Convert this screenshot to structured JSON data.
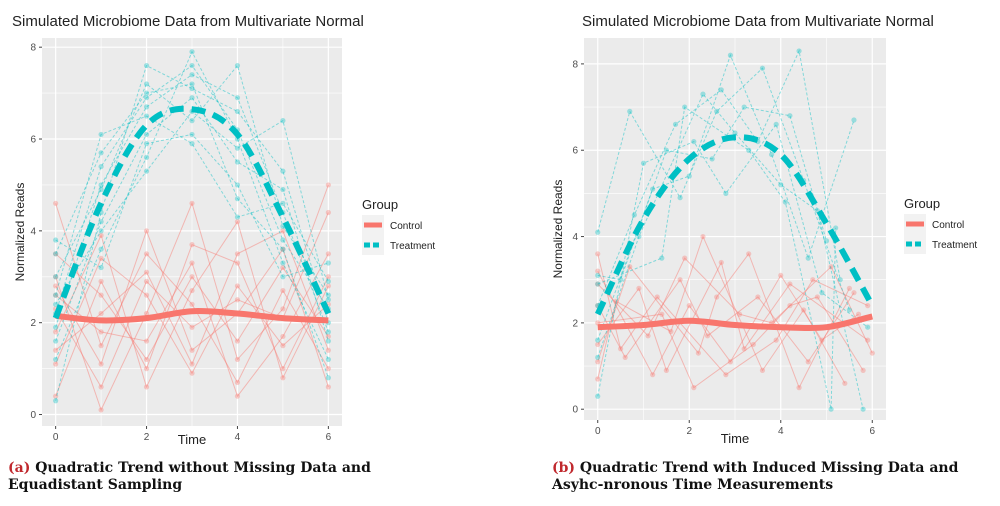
{
  "colors": {
    "control": "#f8766d",
    "treatment": "#00bfc4",
    "panel_bg": "#ebebeb",
    "grid": "#ffffff",
    "caption_tag": "#c0282d"
  },
  "captions": {
    "a_tag": "(a)",
    "a_text": "Quadratic Trend without Missing Data and Equadistant Sampling",
    "b_tag": "(b)",
    "b_text": "Quadratic Trend with Induced Missing Data and Asyhc-nronous Time Measurements"
  },
  "chart_data": [
    {
      "type": "line",
      "title": "Simulated Microbiome Data from Multivariate Normal",
      "xlabel": "Time",
      "ylabel": "Normalized Reads",
      "xlim": [
        -0.3,
        6.3
      ],
      "ylim": [
        -0.25,
        8.2
      ],
      "xticks": [
        0,
        2,
        4,
        6
      ],
      "yticks": [
        0,
        2,
        4,
        6,
        8
      ],
      "grid": true,
      "legend": {
        "title": "Group",
        "entries": [
          "Control",
          "Treatment"
        ],
        "placement": "right"
      },
      "series": [
        {
          "name": "Control",
          "style": "solid",
          "x": [
            0,
            1,
            2,
            3,
            4,
            5,
            6
          ],
          "values": [
            2.15,
            2.05,
            2.1,
            2.25,
            2.2,
            2.1,
            2.05
          ]
        },
        {
          "name": "Treatment",
          "style": "dashed",
          "x": [
            0,
            1,
            2,
            3,
            4,
            5,
            6
          ],
          "values": [
            2.1,
            4.6,
            6.3,
            6.65,
            6.1,
            4.3,
            2.2
          ]
        }
      ],
      "individual_series_control": [
        [
          2.3,
          0.6,
          2.9,
          1.9,
          2.5,
          2.1,
          4.4
        ],
        [
          3.5,
          2.6,
          1.2,
          3.0,
          1.6,
          3.2,
          1.7
        ],
        [
          1.1,
          3.4,
          2.6,
          0.9,
          2.8,
          1.5,
          2.4
        ],
        [
          4.6,
          1.5,
          3.5,
          2.4,
          0.7,
          2.7,
          1.0
        ],
        [
          0.4,
          2.9,
          1.0,
          3.7,
          3.3,
          1.0,
          3.0
        ],
        [
          2.8,
          1.1,
          4.0,
          1.4,
          2.2,
          3.6,
          0.6
        ],
        [
          1.8,
          3.9,
          0.6,
          2.7,
          4.2,
          0.8,
          2.8
        ],
        [
          3.0,
          0.1,
          2.2,
          4.6,
          1.2,
          2.3,
          5.0
        ],
        [
          1.4,
          2.2,
          3.1,
          1.1,
          3.5,
          4.0,
          1.4
        ],
        [
          2.6,
          1.8,
          1.6,
          3.3,
          0.4,
          1.7,
          3.5
        ]
      ],
      "individual_series_treatment": [
        [
          2.2,
          5.4,
          6.9,
          7.6,
          6.2,
          3.8,
          2.3
        ],
        [
          1.6,
          4.2,
          6.1,
          6.9,
          5.5,
          4.9,
          1.6
        ],
        [
          3.0,
          4.9,
          7.2,
          6.4,
          7.6,
          4.1,
          2.6
        ],
        [
          1.2,
          3.6,
          5.6,
          7.9,
          6.0,
          3.3,
          1.2
        ],
        [
          2.6,
          6.1,
          6.5,
          5.9,
          4.3,
          4.6,
          2.9
        ],
        [
          0.3,
          4.4,
          7.6,
          7.1,
          6.6,
          5.3,
          2.0
        ],
        [
          3.8,
          3.2,
          5.9,
          6.1,
          5.0,
          3.0,
          3.3
        ],
        [
          1.9,
          5.0,
          6.7,
          7.4,
          6.9,
          4.4,
          1.8
        ],
        [
          2.4,
          4.0,
          5.3,
          6.6,
          5.8,
          6.4,
          2.5
        ],
        [
          3.5,
          5.7,
          7.0,
          7.2,
          4.7,
          3.6,
          0.8
        ]
      ]
    },
    {
      "type": "line",
      "title": "Simulated Microbiome Data from Multivariate Normal",
      "xlabel": "Time",
      "ylabel": "Normalized Reads",
      "xlim": [
        -0.3,
        6.3
      ],
      "ylim": [
        -0.25,
        8.6
      ],
      "xticks": [
        0,
        2,
        4,
        6
      ],
      "yticks": [
        0,
        2,
        4,
        6,
        8
      ],
      "grid": true,
      "legend": {
        "title": "Group",
        "entries": [
          "Control",
          "Treatment"
        ],
        "placement": "right"
      },
      "series": [
        {
          "name": "Control",
          "style": "solid",
          "x": [
            0,
            1,
            2,
            3,
            4,
            5,
            6
          ],
          "values": [
            1.9,
            1.95,
            2.05,
            1.95,
            1.9,
            1.9,
            2.15
          ]
        },
        {
          "name": "Treatment",
          "style": "dashed",
          "x": [
            0,
            1,
            2,
            3,
            4,
            5,
            6
          ],
          "values": [
            2.2,
            4.4,
            5.8,
            6.3,
            5.9,
            4.3,
            2.4
          ]
        }
      ],
      "individual_series_control": [
        {
          "x": [
            0,
            0.6,
            1.8,
            2.4,
            3.5,
            4.6,
            5.6
          ],
          "y": [
            2.4,
            1.2,
            3.0,
            1.7,
            2.6,
            1.1,
            2.7
          ]
        },
        {
          "x": [
            0,
            0.9,
            1.5,
            2.7,
            3.2,
            4.2,
            5.9
          ],
          "y": [
            1.5,
            2.8,
            0.9,
            3.4,
            1.4,
            2.9,
            1.6
          ]
        },
        {
          "x": [
            0,
            1.2,
            2.0,
            2.9,
            4.0,
            4.9,
            5.7
          ],
          "y": [
            3.2,
            0.8,
            2.4,
            1.1,
            3.1,
            1.6,
            2.2
          ]
        },
        {
          "x": [
            0,
            0.4,
            1.6,
            2.3,
            3.6,
            4.5,
            5.4
          ],
          "y": [
            0.7,
            2.5,
            1.8,
            4.0,
            0.9,
            2.3,
            0.6
          ]
        },
        {
          "x": [
            0,
            1.1,
            1.9,
            3.1,
            3.8,
            5.1,
            6.0
          ],
          "y": [
            2.9,
            1.7,
            3.5,
            2.2,
            2.0,
            3.3,
            1.3
          ]
        },
        {
          "x": [
            0,
            0.7,
            2.2,
            2.6,
            3.3,
            4.4,
            5.5
          ],
          "y": [
            1.1,
            3.3,
            1.3,
            2.6,
            3.6,
            0.5,
            2.8
          ]
        },
        {
          "x": [
            0,
            1.4,
            2.1,
            3.4,
            4.2,
            4.8,
            5.8
          ],
          "y": [
            2.0,
            2.2,
            0.5,
            1.5,
            2.4,
            2.6,
            0.9
          ]
        },
        {
          "x": [
            0,
            0.5,
            1.3,
            2.8,
            3.9,
            4.7,
            5.9
          ],
          "y": [
            3.6,
            1.4,
            2.6,
            0.8,
            1.6,
            3.0,
            2.4
          ]
        }
      ],
      "individual_series_treatment": [
        {
          "x": [
            0,
            0.8,
            1.7,
            2.7,
            3.5,
            4.4,
            5.3
          ],
          "y": [
            2.4,
            4.5,
            6.6,
            7.4,
            6.2,
            8.3,
            3.0
          ]
        },
        {
          "x": [
            0,
            1.2,
            2.0,
            2.9,
            3.8,
            4.6,
            5.6
          ],
          "y": [
            1.6,
            5.1,
            5.4,
            8.2,
            5.9,
            3.5,
            6.7
          ]
        },
        {
          "x": [
            0,
            0.5,
            1.5,
            2.5,
            3.2,
            4.2,
            5.0
          ],
          "y": [
            3.1,
            3.0,
            6.0,
            5.8,
            7.0,
            6.8,
            3.9
          ]
        },
        {
          "x": [
            0,
            0.9,
            2.3,
            3.0,
            4.0,
            4.8,
            5.8
          ],
          "y": [
            1.2,
            4.0,
            7.3,
            6.4,
            5.2,
            4.6,
            0.0
          ]
        },
        {
          "x": [
            0,
            0.7,
            1.8,
            2.6,
            3.6,
            4.5,
            5.5
          ],
          "y": [
            4.1,
            6.9,
            4.9,
            6.9,
            7.9,
            5.3,
            2.3
          ]
        },
        {
          "x": [
            0,
            1.0,
            2.1,
            2.8,
            3.9,
            4.9,
            5.9
          ],
          "y": [
            0.3,
            5.7,
            6.2,
            5.0,
            6.6,
            2.7,
            1.9
          ]
        },
        {
          "x": [
            0,
            1.4,
            1.9,
            3.3,
            4.1,
            5.1,
            5.2
          ],
          "y": [
            2.9,
            3.5,
            7.0,
            6.0,
            4.8,
            0.0,
            4.2
          ]
        }
      ]
    }
  ]
}
